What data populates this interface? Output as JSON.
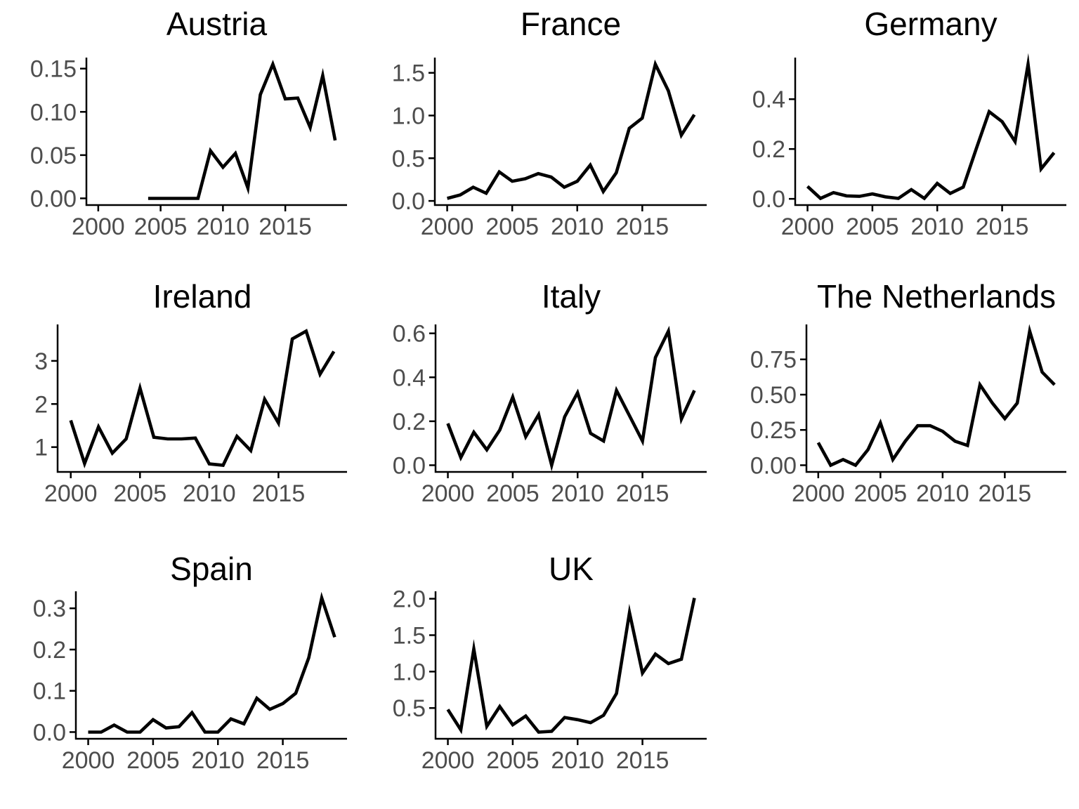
{
  "figure": {
    "background": "#ffffff",
    "description": "Grid of 8 small multiples line charts of annual values per country, 2000-2019",
    "grid": "3 columns x 3 rows, last cell empty"
  },
  "styles": {
    "line_color": "#000000",
    "axis_color": "#000000",
    "tick_label_color": "#4d4d4d",
    "title_color": "#000000"
  },
  "chart_data": [
    {
      "id": "austria",
      "type": "line",
      "title": "Austria",
      "xlabel": "",
      "ylabel": "",
      "grid": false,
      "legend": "none",
      "x_range_shown": [
        1999,
        2020
      ],
      "x": [
        2004,
        2005,
        2006,
        2007,
        2008,
        2009,
        2010,
        2011,
        2012,
        2013,
        2014,
        2015,
        2016,
        2017,
        2018,
        2019
      ],
      "values": [
        0,
        0,
        0,
        0,
        0,
        0.055,
        0.036,
        0.052,
        0.012,
        0.12,
        0.155,
        0.115,
        0.116,
        0.082,
        0.142,
        0.067
      ],
      "x_ticks": [
        2000,
        2005,
        2010,
        2015
      ],
      "x_tick_labels": [
        "2000",
        "2005",
        "2010",
        "2015"
      ],
      "y_ticks": [
        0,
        0.05,
        0.1,
        0.15
      ],
      "y_tick_labels": [
        "0.00",
        "0.05",
        "0.10",
        "0.15"
      ]
    },
    {
      "id": "france",
      "type": "line",
      "title": "France",
      "xlabel": "",
      "ylabel": "",
      "grid": false,
      "legend": "none",
      "x_range_shown": [
        1999,
        2020
      ],
      "x": [
        2000,
        2001,
        2002,
        2003,
        2004,
        2005,
        2006,
        2007,
        2008,
        2009,
        2010,
        2011,
        2012,
        2013,
        2014,
        2015,
        2016,
        2017,
        2018,
        2019
      ],
      "values": [
        0.03,
        0.07,
        0.16,
        0.09,
        0.34,
        0.23,
        0.26,
        0.32,
        0.28,
        0.16,
        0.23,
        0.42,
        0.11,
        0.33,
        0.85,
        0.97,
        1.6,
        1.29,
        0.77,
        1.01
      ],
      "x_ticks": [
        2000,
        2005,
        2010,
        2015
      ],
      "x_tick_labels": [
        "2000",
        "2005",
        "2010",
        "2015"
      ],
      "y_ticks": [
        0,
        0.5,
        1.0,
        1.5
      ],
      "y_tick_labels": [
        "0.0",
        "0.5",
        "1.0",
        "1.5"
      ]
    },
    {
      "id": "germany",
      "type": "line",
      "title": "Germany",
      "xlabel": "",
      "ylabel": "",
      "grid": false,
      "legend": "none",
      "x_range_shown": [
        1999,
        2020
      ],
      "x": [
        2000,
        2001,
        2002,
        2003,
        2004,
        2005,
        2006,
        2007,
        2008,
        2009,
        2010,
        2011,
        2012,
        2013,
        2014,
        2015,
        2016,
        2017,
        2018,
        2019
      ],
      "values": [
        0.05,
        0.002,
        0.025,
        0.012,
        0.01,
        0.02,
        0.008,
        0.002,
        0.037,
        0.002,
        0.062,
        0.022,
        0.047,
        0.2,
        0.35,
        0.31,
        0.23,
        0.54,
        0.12,
        0.185
      ],
      "x_ticks": [
        2000,
        2005,
        2010,
        2015
      ],
      "x_tick_labels": [
        "2000",
        "2005",
        "2010",
        "2015"
      ],
      "y_ticks": [
        0,
        0.2,
        0.4
      ],
      "y_tick_labels": [
        "0.0",
        "0.2",
        "0.4"
      ]
    },
    {
      "id": "ireland",
      "type": "line",
      "title": "Ireland",
      "xlabel": "",
      "ylabel": "",
      "grid": false,
      "legend": "none",
      "x_range_shown": [
        1999,
        2020
      ],
      "x": [
        2000,
        2001,
        2002,
        2003,
        2004,
        2005,
        2006,
        2007,
        2008,
        2009,
        2010,
        2011,
        2012,
        2013,
        2014,
        2015,
        2016,
        2017,
        2018,
        2019
      ],
      "values": [
        1.62,
        0.62,
        1.47,
        0.86,
        1.19,
        2.37,
        1.23,
        1.19,
        1.19,
        1.21,
        0.61,
        0.58,
        1.25,
        0.92,
        2.11,
        1.56,
        3.51,
        3.69,
        2.69,
        3.22
      ],
      "x_ticks": [
        2000,
        2005,
        2010,
        2015
      ],
      "x_tick_labels": [
        "2000",
        "2005",
        "2010",
        "2015"
      ],
      "y_ticks": [
        1,
        2,
        3
      ],
      "y_tick_labels": [
        "1",
        "2",
        "3"
      ]
    },
    {
      "id": "italy",
      "type": "line",
      "title": "Italy",
      "xlabel": "",
      "ylabel": "",
      "grid": false,
      "legend": "none",
      "x_range_shown": [
        1999,
        2020
      ],
      "x": [
        2000,
        2001,
        2002,
        2003,
        2004,
        2005,
        2006,
        2007,
        2008,
        2009,
        2010,
        2011,
        2012,
        2013,
        2014,
        2015,
        2016,
        2017,
        2018,
        2019
      ],
      "values": [
        0.19,
        0.035,
        0.15,
        0.07,
        0.16,
        0.31,
        0.13,
        0.23,
        0.0,
        0.22,
        0.33,
        0.145,
        0.11,
        0.34,
        0.225,
        0.11,
        0.49,
        0.61,
        0.21,
        0.34
      ],
      "x_ticks": [
        2000,
        2005,
        2010,
        2015
      ],
      "x_tick_labels": [
        "2000",
        "2005",
        "2010",
        "2015"
      ],
      "y_ticks": [
        0,
        0.2,
        0.4,
        0.6
      ],
      "y_tick_labels": [
        "0.0",
        "0.2",
        "0.4",
        "0.6"
      ]
    },
    {
      "id": "netherlands",
      "type": "line",
      "title": "The Netherlands",
      "xlabel": "",
      "ylabel": "",
      "grid": false,
      "legend": "none",
      "x_range_shown": [
        1999,
        2020
      ],
      "x": [
        2000,
        2001,
        2002,
        2003,
        2004,
        2005,
        2006,
        2007,
        2008,
        2009,
        2010,
        2011,
        2012,
        2013,
        2014,
        2015,
        2016,
        2017,
        2018,
        2019
      ],
      "values": [
        0.16,
        0.0,
        0.04,
        0.0,
        0.11,
        0.3,
        0.04,
        0.17,
        0.28,
        0.28,
        0.24,
        0.17,
        0.14,
        0.57,
        0.44,
        0.33,
        0.44,
        0.95,
        0.66,
        0.57
      ],
      "x_ticks": [
        2000,
        2005,
        2010,
        2015
      ],
      "x_tick_labels": [
        "2000",
        "2005",
        "2010",
        "2015"
      ],
      "y_ticks": [
        0,
        0.25,
        0.5,
        0.75
      ],
      "y_tick_labels": [
        "0.00",
        "0.25",
        "0.50",
        "0.75"
      ]
    },
    {
      "id": "spain",
      "type": "line",
      "title": "Spain",
      "xlabel": "",
      "ylabel": "",
      "grid": false,
      "legend": "none",
      "x_range_shown": [
        1999,
        2020
      ],
      "x": [
        2000,
        2001,
        2002,
        2003,
        2004,
        2005,
        2006,
        2007,
        2008,
        2009,
        2010,
        2011,
        2012,
        2013,
        2014,
        2015,
        2016,
        2017,
        2018,
        2019
      ],
      "values": [
        0,
        0,
        0.017,
        0,
        0,
        0.03,
        0.01,
        0.013,
        0.047,
        0,
        0,
        0.032,
        0.02,
        0.082,
        0.055,
        0.069,
        0.094,
        0.18,
        0.325,
        0.23
      ],
      "x_ticks": [
        2000,
        2005,
        2010,
        2015
      ],
      "x_tick_labels": [
        "2000",
        "2005",
        "2010",
        "2015"
      ],
      "y_ticks": [
        0,
        0.1,
        0.2,
        0.3
      ],
      "y_tick_labels": [
        "0.0",
        "0.1",
        "0.2",
        "0.3"
      ]
    },
    {
      "id": "uk",
      "type": "line",
      "title": "UK",
      "xlabel": "",
      "ylabel": "",
      "grid": false,
      "legend": "none",
      "x_range_shown": [
        1999,
        2020
      ],
      "x": [
        2000,
        2001,
        2002,
        2003,
        2004,
        2005,
        2006,
        2007,
        2008,
        2009,
        2010,
        2011,
        2012,
        2013,
        2014,
        2015,
        2016,
        2017,
        2018,
        2019
      ],
      "values": [
        0.48,
        0.2,
        1.31,
        0.25,
        0.52,
        0.27,
        0.39,
        0.17,
        0.18,
        0.37,
        0.34,
        0.3,
        0.4,
        0.7,
        1.81,
        0.98,
        1.24,
        1.11,
        1.17,
        2.01
      ],
      "x_ticks": [
        2000,
        2005,
        2010,
        2015
      ],
      "x_tick_labels": [
        "2000",
        "2005",
        "2010",
        "2015"
      ],
      "y_ticks": [
        0.5,
        1.0,
        1.5,
        2.0
      ],
      "y_tick_labels": [
        "0.5",
        "1.0",
        "1.5",
        "2.0"
      ]
    }
  ]
}
